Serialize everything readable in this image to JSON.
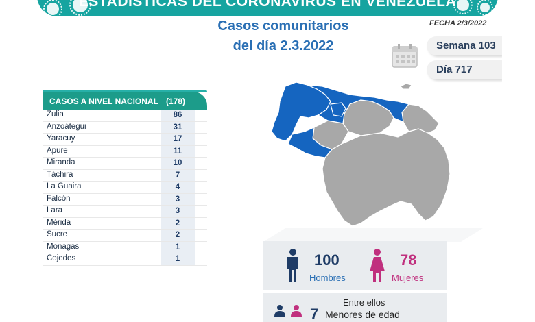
{
  "header": {
    "title": "ESTADÍSTICAS DEL CORONAVIRUS EN VENEZUELA",
    "subtitle_line1": "Casos comunitarios",
    "subtitle_line2": "del día 2.3.2022",
    "fecha": "FECHA 2/3/2022"
  },
  "info": {
    "semana": "Semana 103",
    "dia": "Día 717"
  },
  "table": {
    "heading": "CASOS A NIVEL NACIONAL",
    "total": "(178)",
    "rows": [
      {
        "state": "Zulia",
        "cases": "86"
      },
      {
        "state": "Anzoátegui",
        "cases": "31"
      },
      {
        "state": "Yaracuy",
        "cases": "17"
      },
      {
        "state": "Apure",
        "cases": "11"
      },
      {
        "state": "Miranda",
        "cases": "10"
      },
      {
        "state": "Táchira",
        "cases": "7"
      },
      {
        "state": "La Guaira",
        "cases": "4"
      },
      {
        "state": "Falcón",
        "cases": "3"
      },
      {
        "state": "Lara",
        "cases": "3"
      },
      {
        "state": "Mérida",
        "cases": "2"
      },
      {
        "state": "Sucre",
        "cases": "2"
      },
      {
        "state": "Monagas",
        "cases": "1"
      },
      {
        "state": "Cojedes",
        "cases": "1"
      }
    ]
  },
  "gender": {
    "hombres_count": "100",
    "hombres_label": "Hombres",
    "mujeres_count": "78",
    "mujeres_label": "Mujeres",
    "entre_ellos": "Entre ellos",
    "menores_count": "7",
    "menores_label": "Menores de edad"
  },
  "colors": {
    "banner": "#16a4a0",
    "accent_blue": "#2a6fb4",
    "map_affected": "#1565c0",
    "map_other": "#a8a8a8",
    "female": "#c0307e",
    "male": "#1f3c66"
  },
  "icons": [
    "calendar-icon",
    "virus-icon",
    "male-icon",
    "female-icon"
  ]
}
